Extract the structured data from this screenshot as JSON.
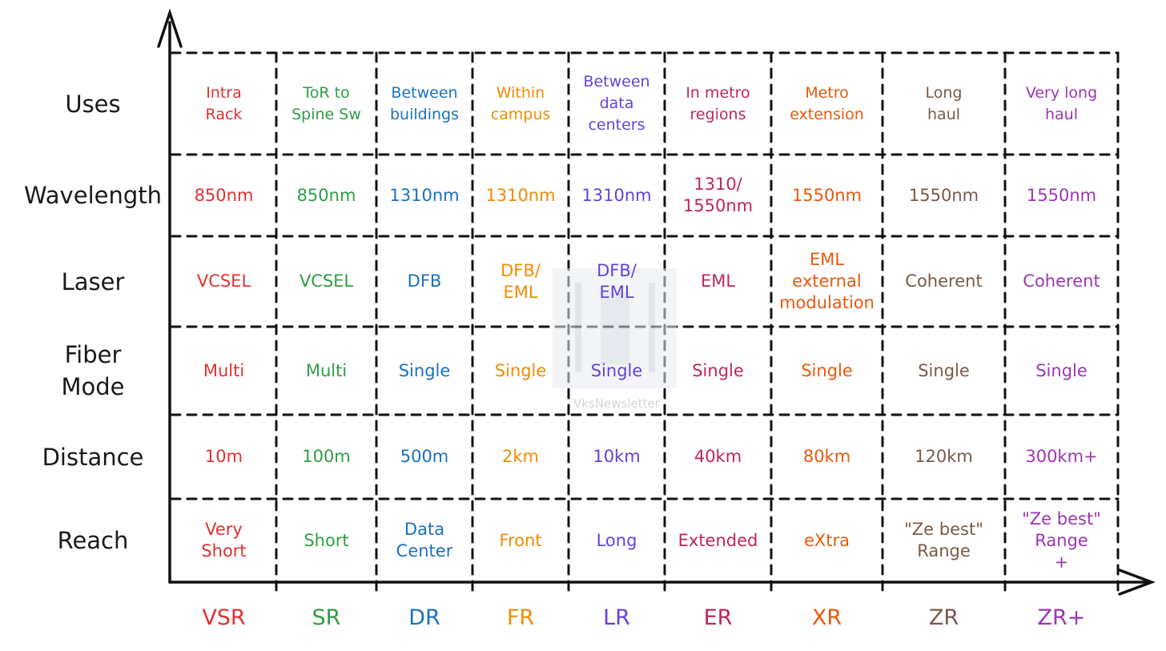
{
  "columns": [
    {
      "code": "VSR",
      "color": "#e03131"
    },
    {
      "code": "SR",
      "color": "#2f9e44"
    },
    {
      "code": "DR",
      "color": "#1971c2"
    },
    {
      "code": "FR",
      "color": "#f08c00"
    },
    {
      "code": "LR",
      "color": "#6741d9"
    },
    {
      "code": "ER",
      "color": "#c2255c"
    },
    {
      "code": "XR",
      "color": "#e8590c"
    },
    {
      "code": "ZR",
      "color": "#7a5a48"
    },
    {
      "code": "ZR+",
      "color": "#9c36b5"
    }
  ],
  "rows": [
    {
      "label": "Uses",
      "values": [
        "Intra\nRack",
        "ToR to\nSpine Sw",
        "Between\nbuildings",
        "Within\ncampus",
        "Between\ndata\ncenters",
        "In metro\nregions",
        "Metro\nextension",
        "Long\nhaul",
        "Very long\nhaul"
      ]
    },
    {
      "label": "Wavelength",
      "values": [
        "850nm",
        "850nm",
        "1310nm",
        "1310nm",
        "1310nm",
        "1310/\n1550nm",
        "1550nm",
        "1550nm",
        "1550nm"
      ]
    },
    {
      "label": "Laser",
      "values": [
        "VCSEL",
        "VCSEL",
        "DFB",
        "DFB/\nEML",
        "DFB/\nEML",
        "EML",
        "EML\nexternal\nmodulation",
        "Coherent",
        "Coherent"
      ]
    },
    {
      "label": "Fiber\nMode",
      "values": [
        "Multi",
        "Multi",
        "Single",
        "Single",
        "Single",
        "Single",
        "Single",
        "Single",
        "Single"
      ]
    },
    {
      "label": "Distance",
      "values": [
        "10m",
        "100m",
        "500m",
        "2km",
        "10km",
        "40km",
        "80km",
        "120km",
        "300km+"
      ]
    },
    {
      "label": "Reach",
      "values": [
        "Very\nShort",
        "Short",
        "Data\nCenter",
        "Front",
        "Long",
        "Extended",
        "eXtra",
        "\"Ze best\"\nRange",
        "\"Ze best\"\nRange\n+"
      ]
    }
  ],
  "watermark": "VksNewsletter"
}
